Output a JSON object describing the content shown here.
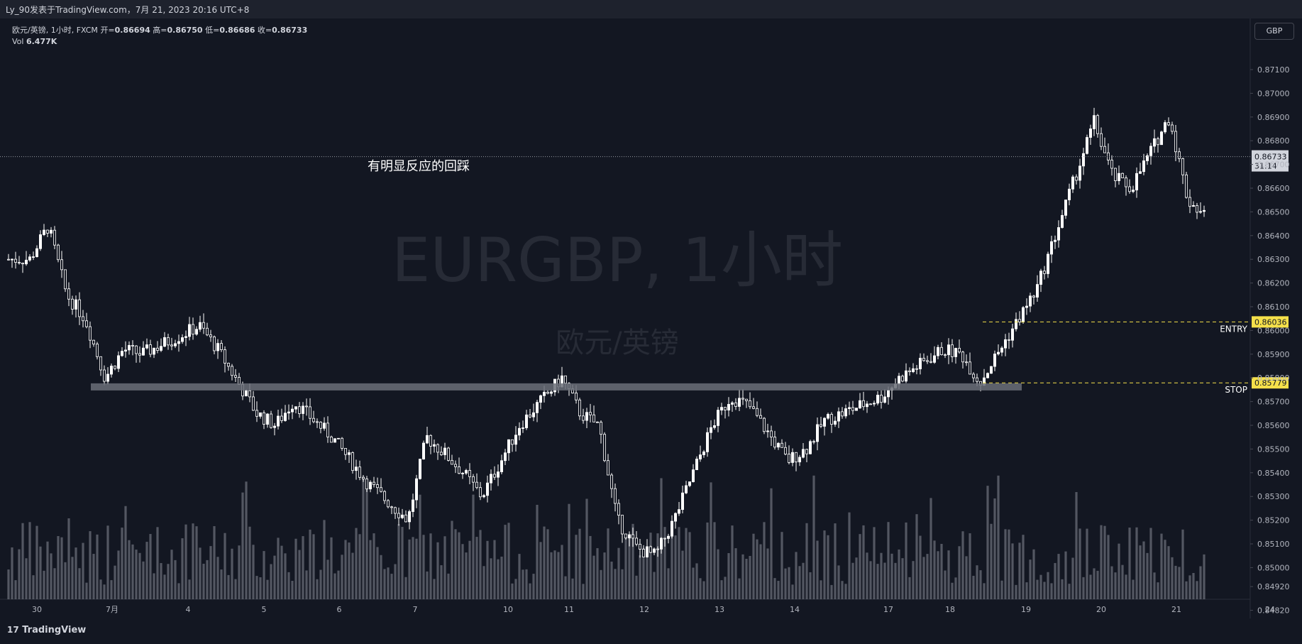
{
  "header": {
    "publish_line": "Ly_90发表于TradingView.com，7月 21, 2023 20:16 UTC+8"
  },
  "legend": {
    "symbol_line": "欧元/英镑, 1小时, FXCM",
    "open_label": "开=",
    "open_value": "0.86694",
    "high_label": "高=",
    "high_value": "0.86750",
    "low_label": "低=",
    "low_value": "0.86686",
    "close_label": "收=",
    "close_value": "0.86733",
    "vol_label": "Vol",
    "vol_value": "6.477K"
  },
  "currency_button": "GBP",
  "watermark": {
    "main": "EURGBP, 1小时",
    "sub": "欧元/英镑"
  },
  "annotation_text": "有明显反应的回踩",
  "branding": "TradingView",
  "colors": {
    "background": "#131722",
    "candle": "#ffffff",
    "volume": "#6a6d78",
    "zone": "#6b6e78",
    "level_line": "#f5e04a",
    "last_price_tag": "#d1d4dc"
  },
  "chart_data": {
    "type": "candlestick",
    "symbol": "EURGBP",
    "timeframe": "1小时",
    "ylim": [
      0.8478,
      0.8714
    ],
    "y_ticks": [
      "0.87100",
      "0.87000",
      "0.86900",
      "0.86800",
      "0.86700",
      "0.86600",
      "0.86500",
      "0.86400",
      "0.86300",
      "0.86200",
      "0.86100",
      "0.86000",
      "0.85900",
      "0.85800",
      "0.85700",
      "0.85600",
      "0.85500",
      "0.85400",
      "0.85300",
      "0.85200",
      "0.85100",
      "0.85000",
      "0.84920",
      "0.84820"
    ],
    "x_ticks": [
      "30",
      "7月",
      "4",
      "5",
      "6",
      "7",
      "10",
      "11",
      "12",
      "13",
      "14",
      "17",
      "18",
      "19",
      "20",
      "21",
      "24"
    ],
    "last_price": {
      "value": "0.86733",
      "countdown": "31:14"
    },
    "levels": [
      {
        "label": "ENTRY",
        "value": "0.86036",
        "style": "dashed-yellow"
      },
      {
        "label": "STOP",
        "value": "0.85779",
        "style": "dashed-yellow"
      }
    ],
    "support_zone": {
      "y_center": 0.85762,
      "x_start": "7月",
      "x_end": "19"
    },
    "price_path": [
      {
        "x": "30",
        "y": 0.863
      },
      {
        "x": "30",
        "y": 0.8644
      },
      {
        "x": "30",
        "y": 0.8615
      },
      {
        "x": "30",
        "y": 0.8605
      },
      {
        "x": "7月",
        "y": 0.858
      },
      {
        "x": "7月",
        "y": 0.8592
      },
      {
        "x": "7月",
        "y": 0.859
      },
      {
        "x": "4",
        "y": 0.8598
      },
      {
        "x": "4",
        "y": 0.8602
      },
      {
        "x": "4",
        "y": 0.8592
      },
      {
        "x": "5",
        "y": 0.8565
      },
      {
        "x": "5",
        "y": 0.856
      },
      {
        "x": "5",
        "y": 0.857
      },
      {
        "x": "6",
        "y": 0.8555
      },
      {
        "x": "6",
        "y": 0.8545
      },
      {
        "x": "6",
        "y": 0.8535
      },
      {
        "x": "7",
        "y": 0.852
      },
      {
        "x": "7",
        "y": 0.8555
      },
      {
        "x": "7",
        "y": 0.8548
      },
      {
        "x": "7",
        "y": 0.854
      },
      {
        "x": "7",
        "y": 0.853
      },
      {
        "x": "10",
        "y": 0.8545
      },
      {
        "x": "10",
        "y": 0.856
      },
      {
        "x": "11",
        "y": 0.858
      },
      {
        "x": "11",
        "y": 0.8565
      },
      {
        "x": "11",
        "y": 0.856
      },
      {
        "x": "11",
        "y": 0.852
      },
      {
        "x": "12",
        "y": 0.8508
      },
      {
        "x": "12",
        "y": 0.8505
      },
      {
        "x": "12",
        "y": 0.852
      },
      {
        "x": "13",
        "y": 0.856
      },
      {
        "x": "13",
        "y": 0.8572
      },
      {
        "x": "13",
        "y": 0.8568
      },
      {
        "x": "14",
        "y": 0.8545
      },
      {
        "x": "14",
        "y": 0.855
      },
      {
        "x": "14",
        "y": 0.8562
      },
      {
        "x": "17",
        "y": 0.8572
      },
      {
        "x": "17",
        "y": 0.858
      },
      {
        "x": "18",
        "y": 0.8592
      },
      {
        "x": "18",
        "y": 0.859
      },
      {
        "x": "18",
        "y": 0.8578
      },
      {
        "x": "19",
        "y": 0.8605
      },
      {
        "x": "19",
        "y": 0.8618
      },
      {
        "x": "20",
        "y": 0.8688
      },
      {
        "x": "20",
        "y": 0.8665
      },
      {
        "x": "20",
        "y": 0.866
      },
      {
        "x": "21",
        "y": 0.869
      },
      {
        "x": "21",
        "y": 0.8655
      },
      {
        "x": "21",
        "y": 0.8648
      },
      {
        "x": "21",
        "y": 0.8645
      },
      {
        "x": "24",
        "y": 0.8673
      }
    ]
  }
}
